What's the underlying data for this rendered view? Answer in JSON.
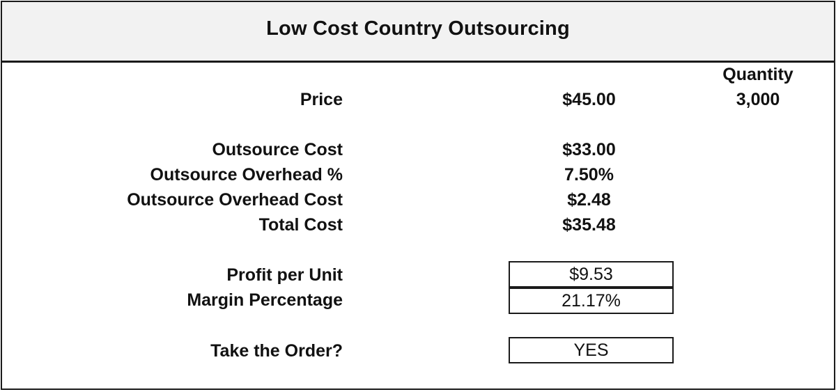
{
  "title": "Low Cost Country Outsourcing",
  "quantity": {
    "label": "Quantity",
    "value": "3,000"
  },
  "price": {
    "label": "Price",
    "value": "$45.00"
  },
  "costs": [
    {
      "label": "Outsource Cost",
      "value": "$33.00"
    },
    {
      "label": "Outsource Overhead %",
      "value": "7.50%"
    },
    {
      "label": "Outsource Overhead Cost",
      "value": "$2.48"
    },
    {
      "label": "Total Cost",
      "value": "$35.48"
    }
  ],
  "results": [
    {
      "label": "Profit per Unit",
      "value": "$9.53"
    },
    {
      "label": "Margin Percentage",
      "value": "21.17%"
    }
  ],
  "decision": {
    "label": "Take the Order?",
    "value": "YES"
  }
}
